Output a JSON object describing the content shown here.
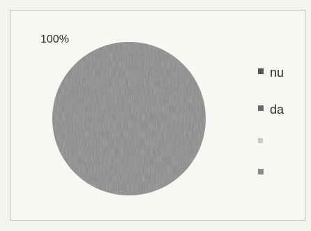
{
  "chart_data": {
    "type": "pie",
    "title": "",
    "slices": [
      {
        "label": "nu",
        "value": 100,
        "data_label": "100%",
        "color": "#8a8a8a"
      },
      {
        "label": "da",
        "value": 0,
        "color": "#9a9a9a"
      },
      {
        "label": "",
        "value": 0,
        "color": "#c4c4c4"
      },
      {
        "label": "",
        "value": 0,
        "color": "#9c9c9c"
      }
    ],
    "legend_position": "right"
  }
}
